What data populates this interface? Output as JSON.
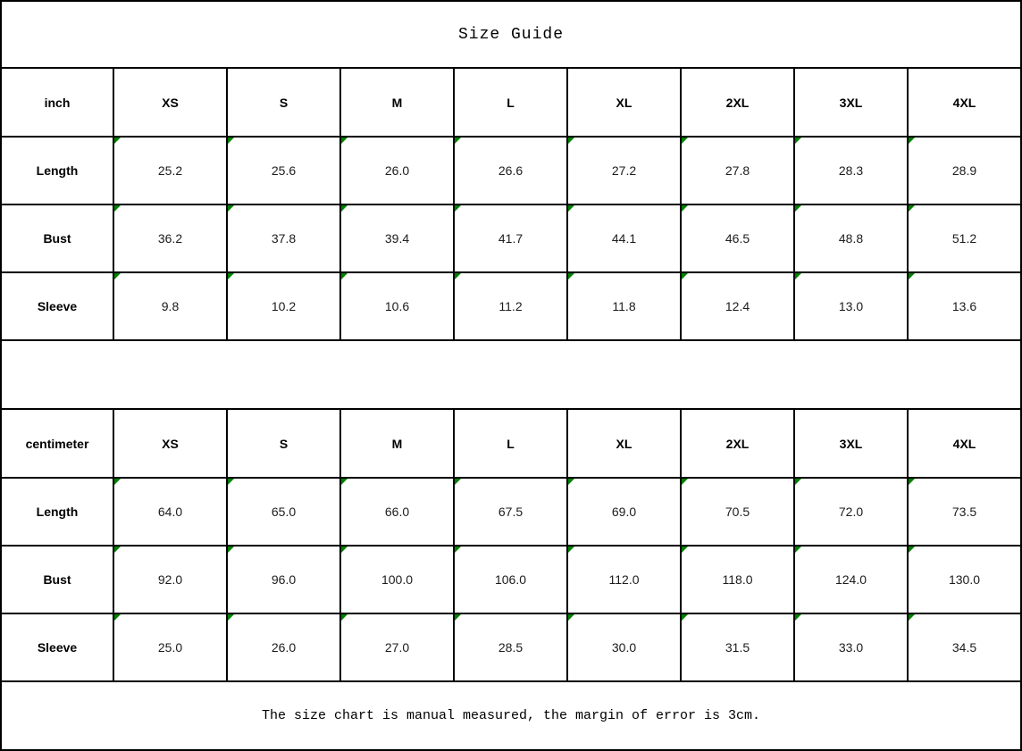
{
  "chart_data": {
    "type": "table",
    "title": "Size Guide",
    "footnote": "The size chart is manual measured, the margin of error is 3cm.",
    "size_columns": [
      "XS",
      "S",
      "M",
      "L",
      "XL",
      "2XL",
      "3XL",
      "4XL"
    ],
    "tables": [
      {
        "unit_label": "inch",
        "rows": [
          {
            "label": "Length",
            "values": [
              "25.2",
              "25.6",
              "26.0",
              "26.6",
              "27.2",
              "27.8",
              "28.3",
              "28.9"
            ]
          },
          {
            "label": "Bust",
            "values": [
              "36.2",
              "37.8",
              "39.4",
              "41.7",
              "44.1",
              "46.5",
              "48.8",
              "51.2"
            ]
          },
          {
            "label": "Sleeve",
            "values": [
              "9.8",
              "10.2",
              "10.6",
              "11.2",
              "11.8",
              "12.4",
              "13.0",
              "13.6"
            ]
          }
        ]
      },
      {
        "unit_label": "centimeter",
        "rows": [
          {
            "label": "Length",
            "values": [
              "64.0",
              "65.0",
              "66.0",
              "67.5",
              "69.0",
              "70.5",
              "72.0",
              "73.5"
            ]
          },
          {
            "label": "Bust",
            "values": [
              "92.0",
              "96.0",
              "100.0",
              "106.0",
              "112.0",
              "118.0",
              "124.0",
              "130.0"
            ]
          },
          {
            "label": "Sleeve",
            "values": [
              "25.0",
              "26.0",
              "27.0",
              "28.5",
              "30.0",
              "31.5",
              "33.0",
              "34.5"
            ]
          }
        ]
      }
    ]
  },
  "icons": {
    "cell_marker": "comment-marker-triangle"
  },
  "colors": {
    "grid_border": "#000000",
    "cell_marker_green": "#008000",
    "text": "#000000",
    "background": "#ffffff"
  }
}
